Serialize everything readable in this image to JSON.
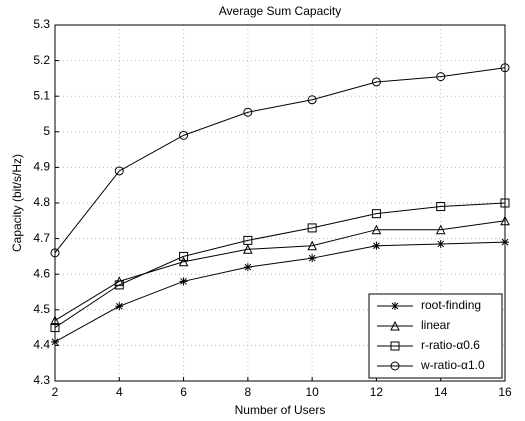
{
  "chart_data": {
    "type": "line",
    "title": "Average Sum Capacity",
    "xlabel": "Number of Users",
    "ylabel": "Capacity (bit/s/Hz)",
    "x": [
      2,
      4,
      6,
      8,
      10,
      12,
      14,
      16
    ],
    "series": [
      {
        "name": "root-finding",
        "color": "#000000",
        "marker": "star",
        "values": [
          4.41,
          4.51,
          4.58,
          4.62,
          4.645,
          4.68,
          4.685,
          4.69
        ]
      },
      {
        "name": "linear",
        "color": "#000000",
        "marker": "triangle",
        "values": [
          4.47,
          4.58,
          4.635,
          4.67,
          4.68,
          4.725,
          4.725,
          4.75
        ]
      },
      {
        "name": "r-ratio-α0.6",
        "color": "#000000",
        "marker": "square",
        "values": [
          4.45,
          4.57,
          4.65,
          4.695,
          4.73,
          4.77,
          4.79,
          4.8
        ]
      },
      {
        "name": "w-ratio-α1.0",
        "color": "#000000",
        "marker": "circle",
        "values": [
          4.66,
          4.89,
          4.99,
          5.055,
          5.09,
          5.14,
          5.155,
          5.18
        ]
      }
    ],
    "xlim": [
      2,
      16
    ],
    "xticks": [
      2,
      4,
      6,
      8,
      10,
      12,
      14,
      16
    ],
    "ylim": [
      4.3,
      5.3
    ],
    "yticks": [
      4.3,
      4.4,
      4.5,
      4.6,
      4.7,
      4.8,
      4.9,
      5,
      5.1,
      5.2,
      5.3
    ],
    "grid": true,
    "legend": "lower right"
  }
}
